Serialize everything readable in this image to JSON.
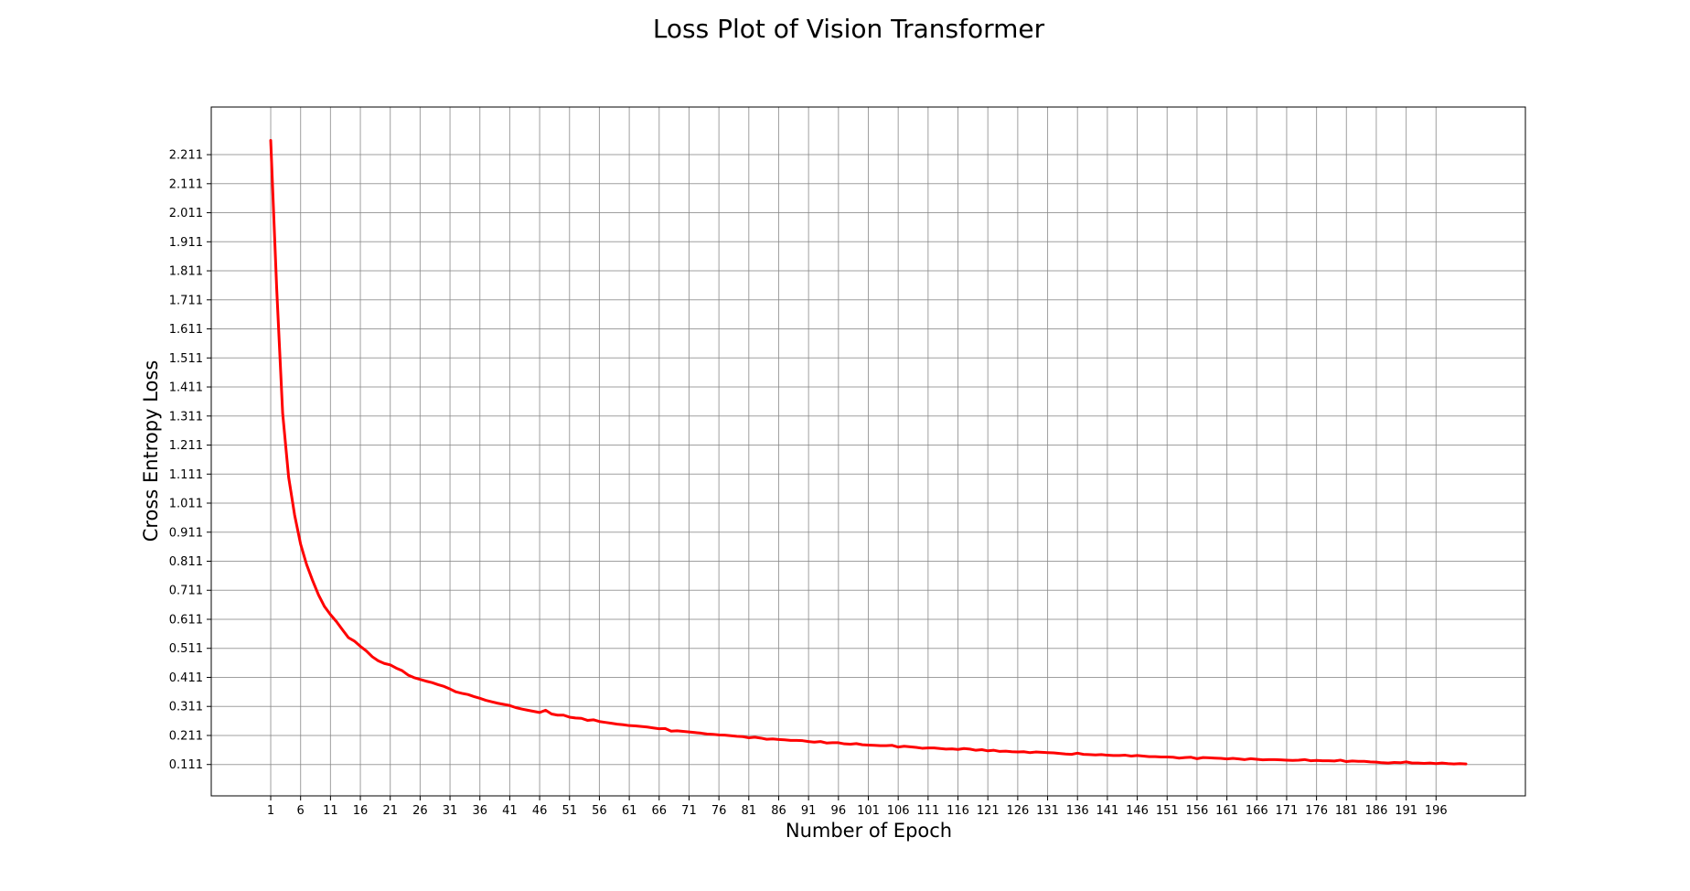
{
  "chart_data": {
    "type": "line",
    "title": "Loss Plot of Vision Transformer",
    "xlabel": "Number of Epoch",
    "ylabel": "Cross Entropy Loss",
    "xlim": [
      -8.95,
      210.95
    ],
    "ylim": [
      0.003,
      2.375
    ],
    "grid": true,
    "legend": "none",
    "x_ticks": [
      1,
      6,
      11,
      16,
      21,
      26,
      31,
      36,
      41,
      46,
      51,
      56,
      61,
      66,
      71,
      76,
      81,
      86,
      91,
      96,
      101,
      106,
      111,
      116,
      121,
      126,
      131,
      136,
      141,
      146,
      151,
      156,
      161,
      166,
      171,
      176,
      181,
      186,
      191,
      196
    ],
    "y_ticks": [
      0.111,
      0.211,
      0.311,
      0.411,
      0.511,
      0.611,
      0.711,
      0.811,
      0.911,
      1.011,
      1.111,
      1.211,
      1.311,
      1.411,
      1.511,
      1.611,
      1.711,
      1.811,
      1.911,
      2.011,
      2.111,
      2.211
    ],
    "series": [
      {
        "color": "#ff0000",
        "x_start": 1,
        "values": [
          2.26,
          1.75,
          1.32,
          1.1,
          0.97,
          0.87,
          0.8,
          0.745,
          0.695,
          0.655,
          0.627,
          0.603,
          0.575,
          0.548,
          0.536,
          0.518,
          0.502,
          0.482,
          0.468,
          0.459,
          0.454,
          0.443,
          0.434,
          0.419,
          0.41,
          0.404,
          0.398,
          0.393,
          0.386,
          0.38,
          0.371,
          0.361,
          0.356,
          0.352,
          0.345,
          0.339,
          0.332,
          0.327,
          0.322,
          0.318,
          0.314,
          0.307,
          0.302,
          0.298,
          0.294,
          0.29,
          0.298,
          0.285,
          0.281,
          0.281,
          0.274,
          0.271,
          0.27,
          0.263,
          0.265,
          0.259,
          0.256,
          0.253,
          0.25,
          0.248,
          0.245,
          0.244,
          0.242,
          0.24,
          0.237,
          0.234,
          0.235,
          0.226,
          0.227,
          0.225,
          0.223,
          0.221,
          0.219,
          0.216,
          0.215,
          0.213,
          0.212,
          0.21,
          0.208,
          0.207,
          0.203,
          0.205,
          0.202,
          0.198,
          0.199,
          0.197,
          0.196,
          0.194,
          0.194,
          0.193,
          0.19,
          0.188,
          0.19,
          0.185,
          0.186,
          0.186,
          0.182,
          0.181,
          0.183,
          0.179,
          0.178,
          0.177,
          0.176,
          0.176,
          0.177,
          0.171,
          0.174,
          0.172,
          0.17,
          0.167,
          0.168,
          0.168,
          0.166,
          0.164,
          0.165,
          0.163,
          0.166,
          0.164,
          0.16,
          0.162,
          0.158,
          0.16,
          0.156,
          0.157,
          0.155,
          0.154,
          0.155,
          0.152,
          0.154,
          0.153,
          0.152,
          0.151,
          0.149,
          0.147,
          0.146,
          0.15,
          0.146,
          0.145,
          0.144,
          0.145,
          0.143,
          0.142,
          0.142,
          0.143,
          0.14,
          0.142,
          0.14,
          0.138,
          0.138,
          0.137,
          0.137,
          0.136,
          0.133,
          0.135,
          0.136,
          0.131,
          0.135,
          0.134,
          0.133,
          0.132,
          0.13,
          0.132,
          0.13,
          0.128,
          0.131,
          0.129,
          0.127,
          0.128,
          0.128,
          0.127,
          0.126,
          0.125,
          0.126,
          0.128,
          0.124,
          0.125,
          0.124,
          0.124,
          0.123,
          0.126,
          0.121,
          0.123,
          0.122,
          0.122,
          0.12,
          0.119,
          0.117,
          0.116,
          0.118,
          0.117,
          0.12,
          0.116,
          0.116,
          0.115,
          0.116,
          0.114,
          0.116,
          0.114,
          0.113,
          0.114,
          0.113
        ]
      }
    ]
  }
}
